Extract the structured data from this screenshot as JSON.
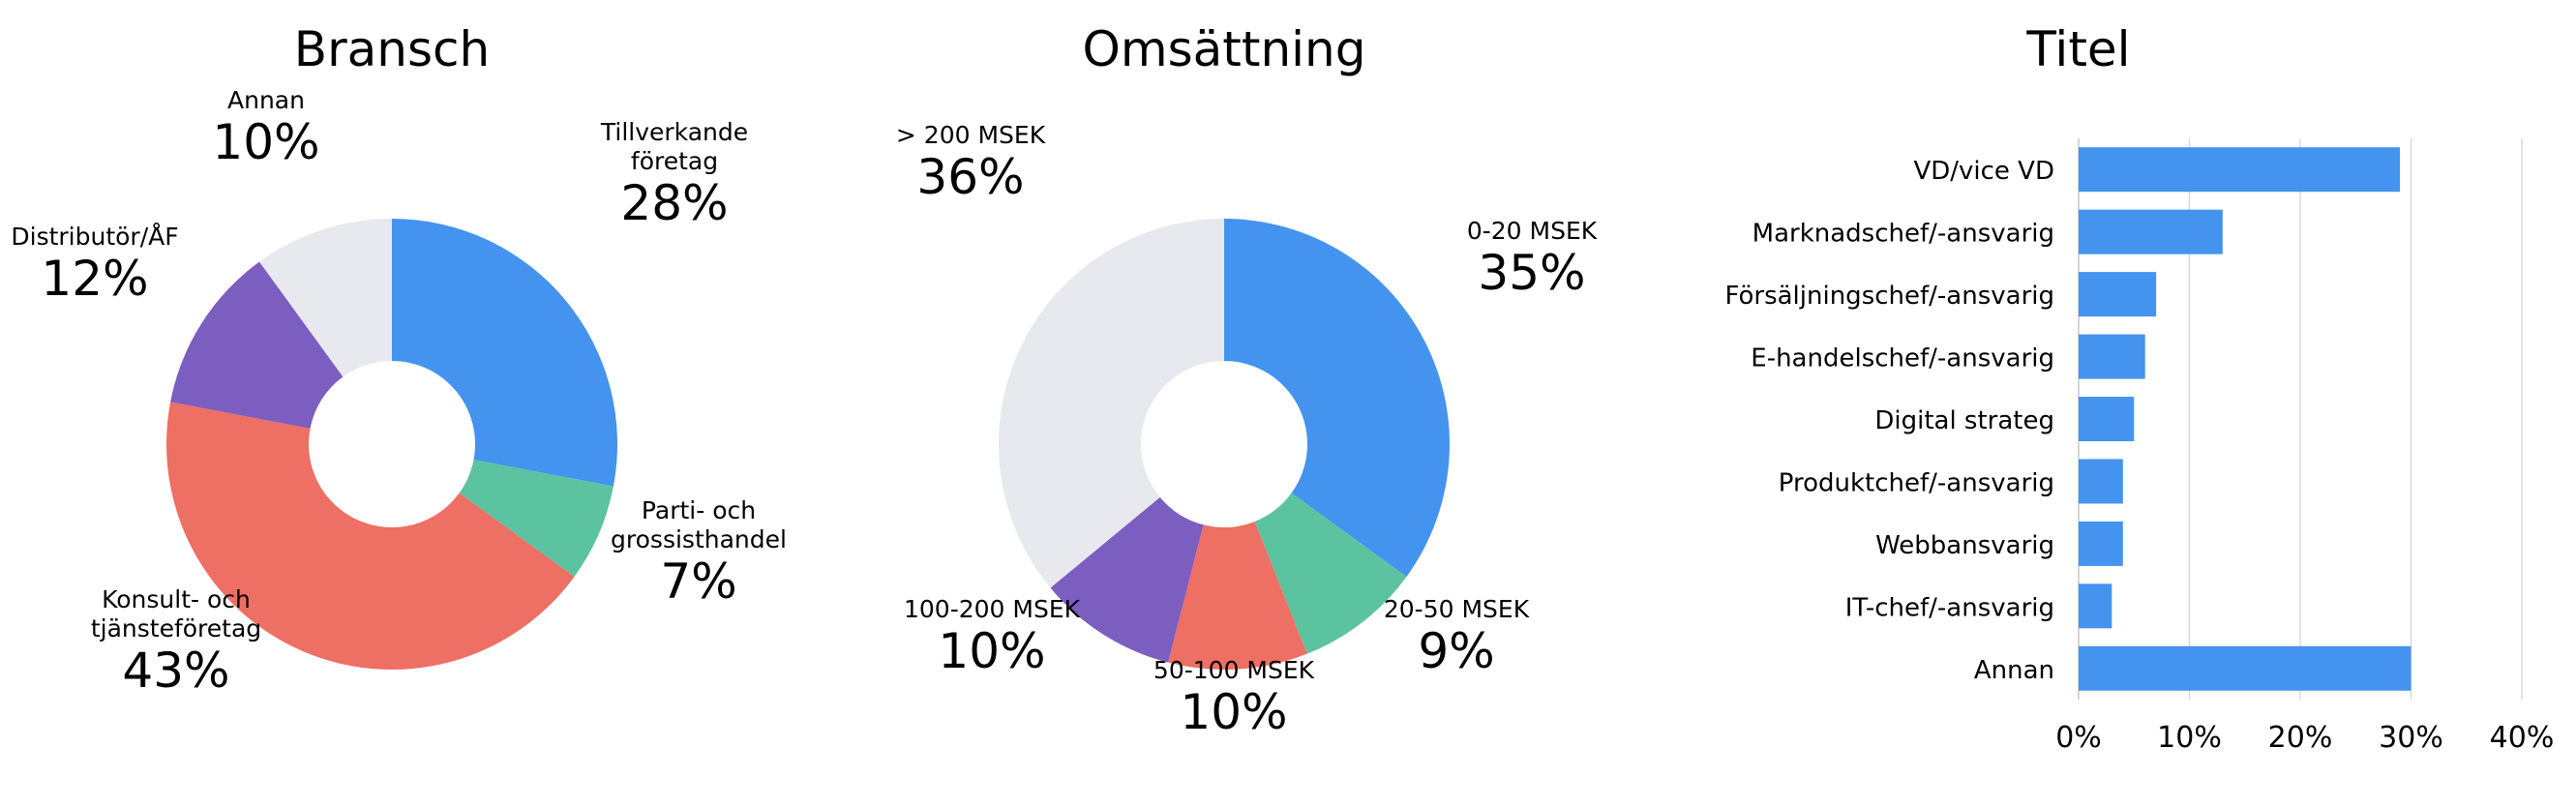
{
  "chart_data": [
    {
      "type": "pie",
      "title": "Bransch",
      "slices": [
        {
          "label": [
            "Tillverkande",
            "företag"
          ],
          "value": 28,
          "display": "28%",
          "color": "#4493EE"
        },
        {
          "label": [
            "Parti- och",
            "grossisthandel"
          ],
          "value": 7,
          "display": "7%",
          "color": "#5BC39F"
        },
        {
          "label": [
            "Konsult- och",
            "tjänsteföretag"
          ],
          "value": 43,
          "display": "43%",
          "color": "#EE6F63"
        },
        {
          "label": [
            "Distributör/ÅF"
          ],
          "value": 12,
          "display": "12%",
          "color": "#7B5EBF"
        },
        {
          "label": [
            "Annan"
          ],
          "value": 10,
          "display": "10%",
          "color": "#E8E9EE"
        }
      ]
    },
    {
      "type": "pie",
      "title": "Omsättning",
      "slices": [
        {
          "label": [
            "0-20 MSEK"
          ],
          "value": 35,
          "display": "35%",
          "color": "#4493EE"
        },
        {
          "label": [
            "20-50 MSEK"
          ],
          "value": 9,
          "display": "9%",
          "color": "#5BC39F"
        },
        {
          "label": [
            "50-100 MSEK"
          ],
          "value": 10,
          "display": "10%",
          "color": "#EE6F63"
        },
        {
          "label": [
            "100-200 MSEK"
          ],
          "value": 10,
          "display": "10%",
          "color": "#7B5EBF"
        },
        {
          "label": [
            "> 200 MSEK"
          ],
          "value": 36,
          "display": "36%",
          "color": "#E8E9EE"
        }
      ]
    },
    {
      "type": "bar",
      "orientation": "horizontal",
      "title": "Titel",
      "categories": [
        "VD/vice VD",
        "Marknadschef/-ansvarig",
        "Försäljningschef/-ansvarig",
        "E-handelschef/-ansvarig",
        "Digital strateg",
        "Produktchef/-ansvarig",
        "Webbansvarig",
        "IT-chef/-ansvarig",
        "Annan"
      ],
      "values": [
        29,
        13,
        7,
        6,
        5,
        4,
        4,
        3,
        30
      ],
      "xlim": [
        0,
        40
      ],
      "xticks": [
        0,
        10,
        20,
        30,
        40
      ],
      "xtick_labels": [
        "0%",
        "10%",
        "20%",
        "30%",
        "40%"
      ],
      "grid": true,
      "bar_color": "#4493EE"
    }
  ]
}
